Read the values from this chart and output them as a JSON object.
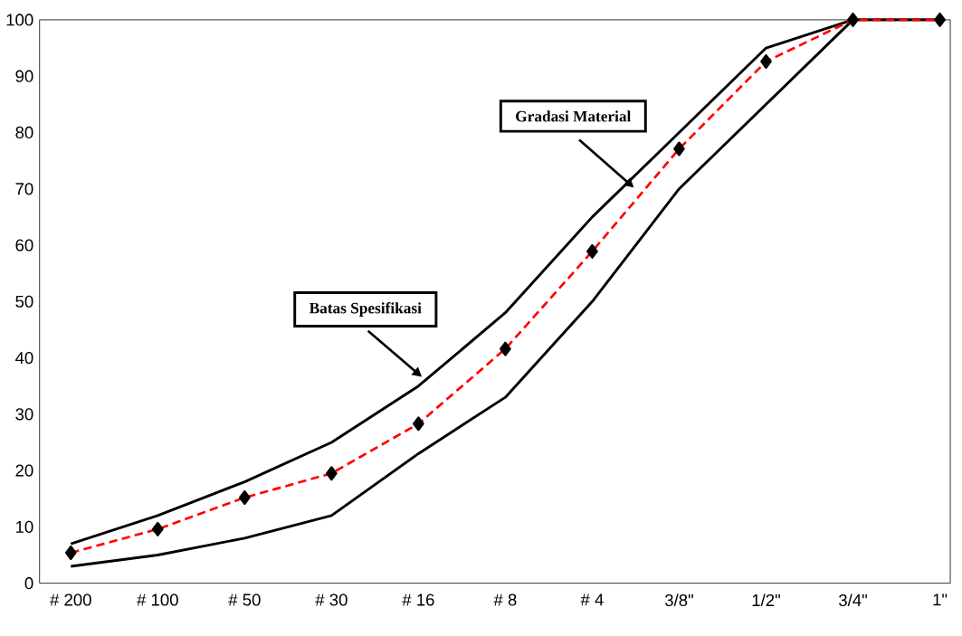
{
  "chart_data": {
    "type": "line",
    "categories": [
      "# 200",
      "# 100",
      "# 50",
      "# 30",
      "# 16",
      "# 8",
      "# 4",
      "3/8\"",
      "1/2\"",
      "3/4\"",
      "1\""
    ],
    "series": [
      {
        "color": "#000000",
        "marker": "none",
        "line_style": "solid",
        "values": [
          7,
          12,
          18,
          25,
          35,
          48,
          65,
          80,
          95,
          100,
          100
        ]
      },
      {
        "color": "#000000",
        "marker": "none",
        "line_style": "solid",
        "values": [
          3,
          5,
          8,
          12,
          23,
          33,
          50,
          70,
          85,
          100,
          100
        ]
      },
      {
        "color": "#ff0000",
        "marker": "diamond",
        "line_style": "dashed",
        "values": [
          5.4,
          9.6,
          15.2,
          19.5,
          28.3,
          41.6,
          58.9,
          77.1,
          92.6,
          100,
          100
        ]
      }
    ],
    "ylim": [
      0,
      100
    ],
    "yticks": [
      0,
      10,
      20,
      30,
      40,
      50,
      60,
      70,
      80,
      90,
      100
    ],
    "annotations": [
      "Batas Spesifikasi",
      "Gradasi Material"
    ]
  }
}
